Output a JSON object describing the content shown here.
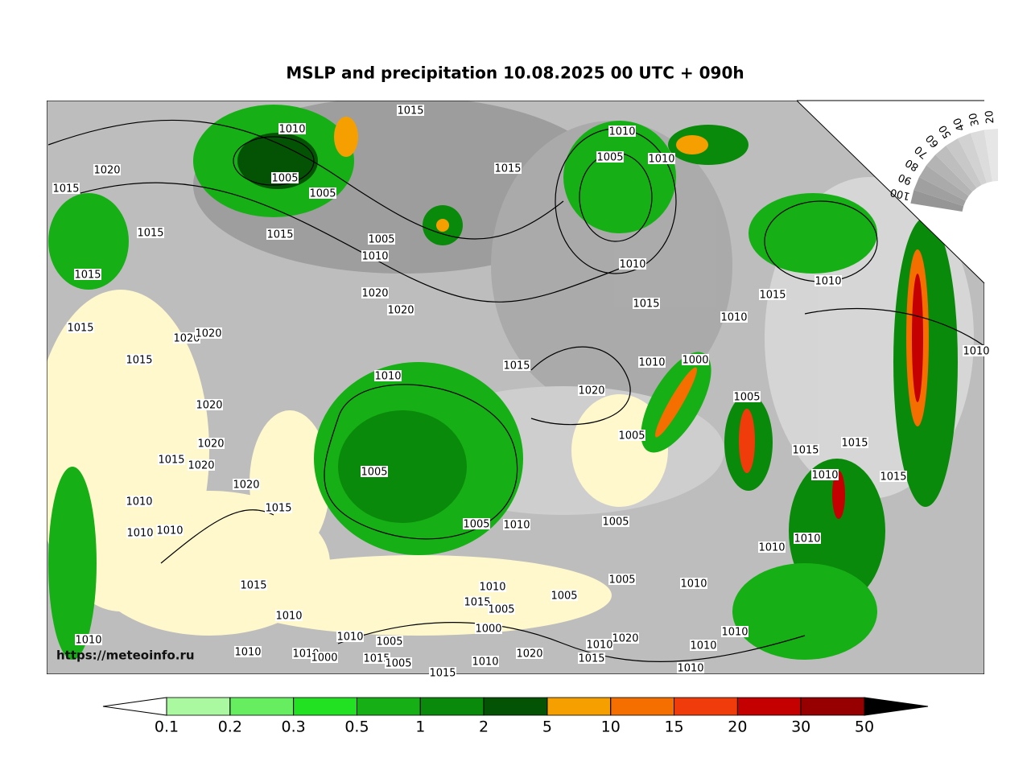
{
  "title": "MSLP and precipitation 10.08.2025 00 UTC + 090h",
  "watermark": "https://meteoinfo.ru",
  "isobar_labels": [
    1015,
    1010,
    1010,
    1005,
    1010,
    1020,
    1005,
    1015,
    1015,
    1005,
    1015,
    1015,
    1005,
    1010,
    1010,
    1010,
    1015,
    1015,
    1020,
    1015,
    1020,
    1010,
    1015,
    1020,
    1020,
    1015,
    1010,
    1000,
    1010,
    1015,
    1010,
    1020,
    1005,
    1020,
    1005,
    1015,
    1015,
    1020,
    1015,
    1020,
    1005,
    1010,
    1015,
    1020,
    1015,
    1010,
    1005,
    1010,
    1005,
    1010,
    1010,
    1010,
    1010,
    1015,
    1005,
    1010,
    1010,
    1005,
    1015,
    1005,
    1010,
    1000,
    1010,
    1010,
    1005,
    1020,
    1010,
    1010,
    1010,
    1010,
    1010,
    1020,
    1000,
    1015,
    1015,
    1010,
    1010,
    1005,
    1015
  ],
  "colorbar": {
    "levels": [
      0.1,
      0.2,
      0.3,
      0.5,
      1,
      2,
      5,
      10,
      15,
      20,
      30,
      50
    ],
    "colors": [
      "#aaf8a0",
      "#66ee60",
      "#22e022",
      "#16b016",
      "#0a8a0a",
      "#045204",
      "#f5a000",
      "#f56e00",
      "#f03c0a",
      "#c40000",
      "#960000"
    ],
    "under_color": "#ffffff",
    "over_color": "#000000"
  },
  "cloud_scale": {
    "labels": [
      100,
      90,
      80,
      70,
      60,
      50,
      40,
      30,
      20
    ]
  }
}
